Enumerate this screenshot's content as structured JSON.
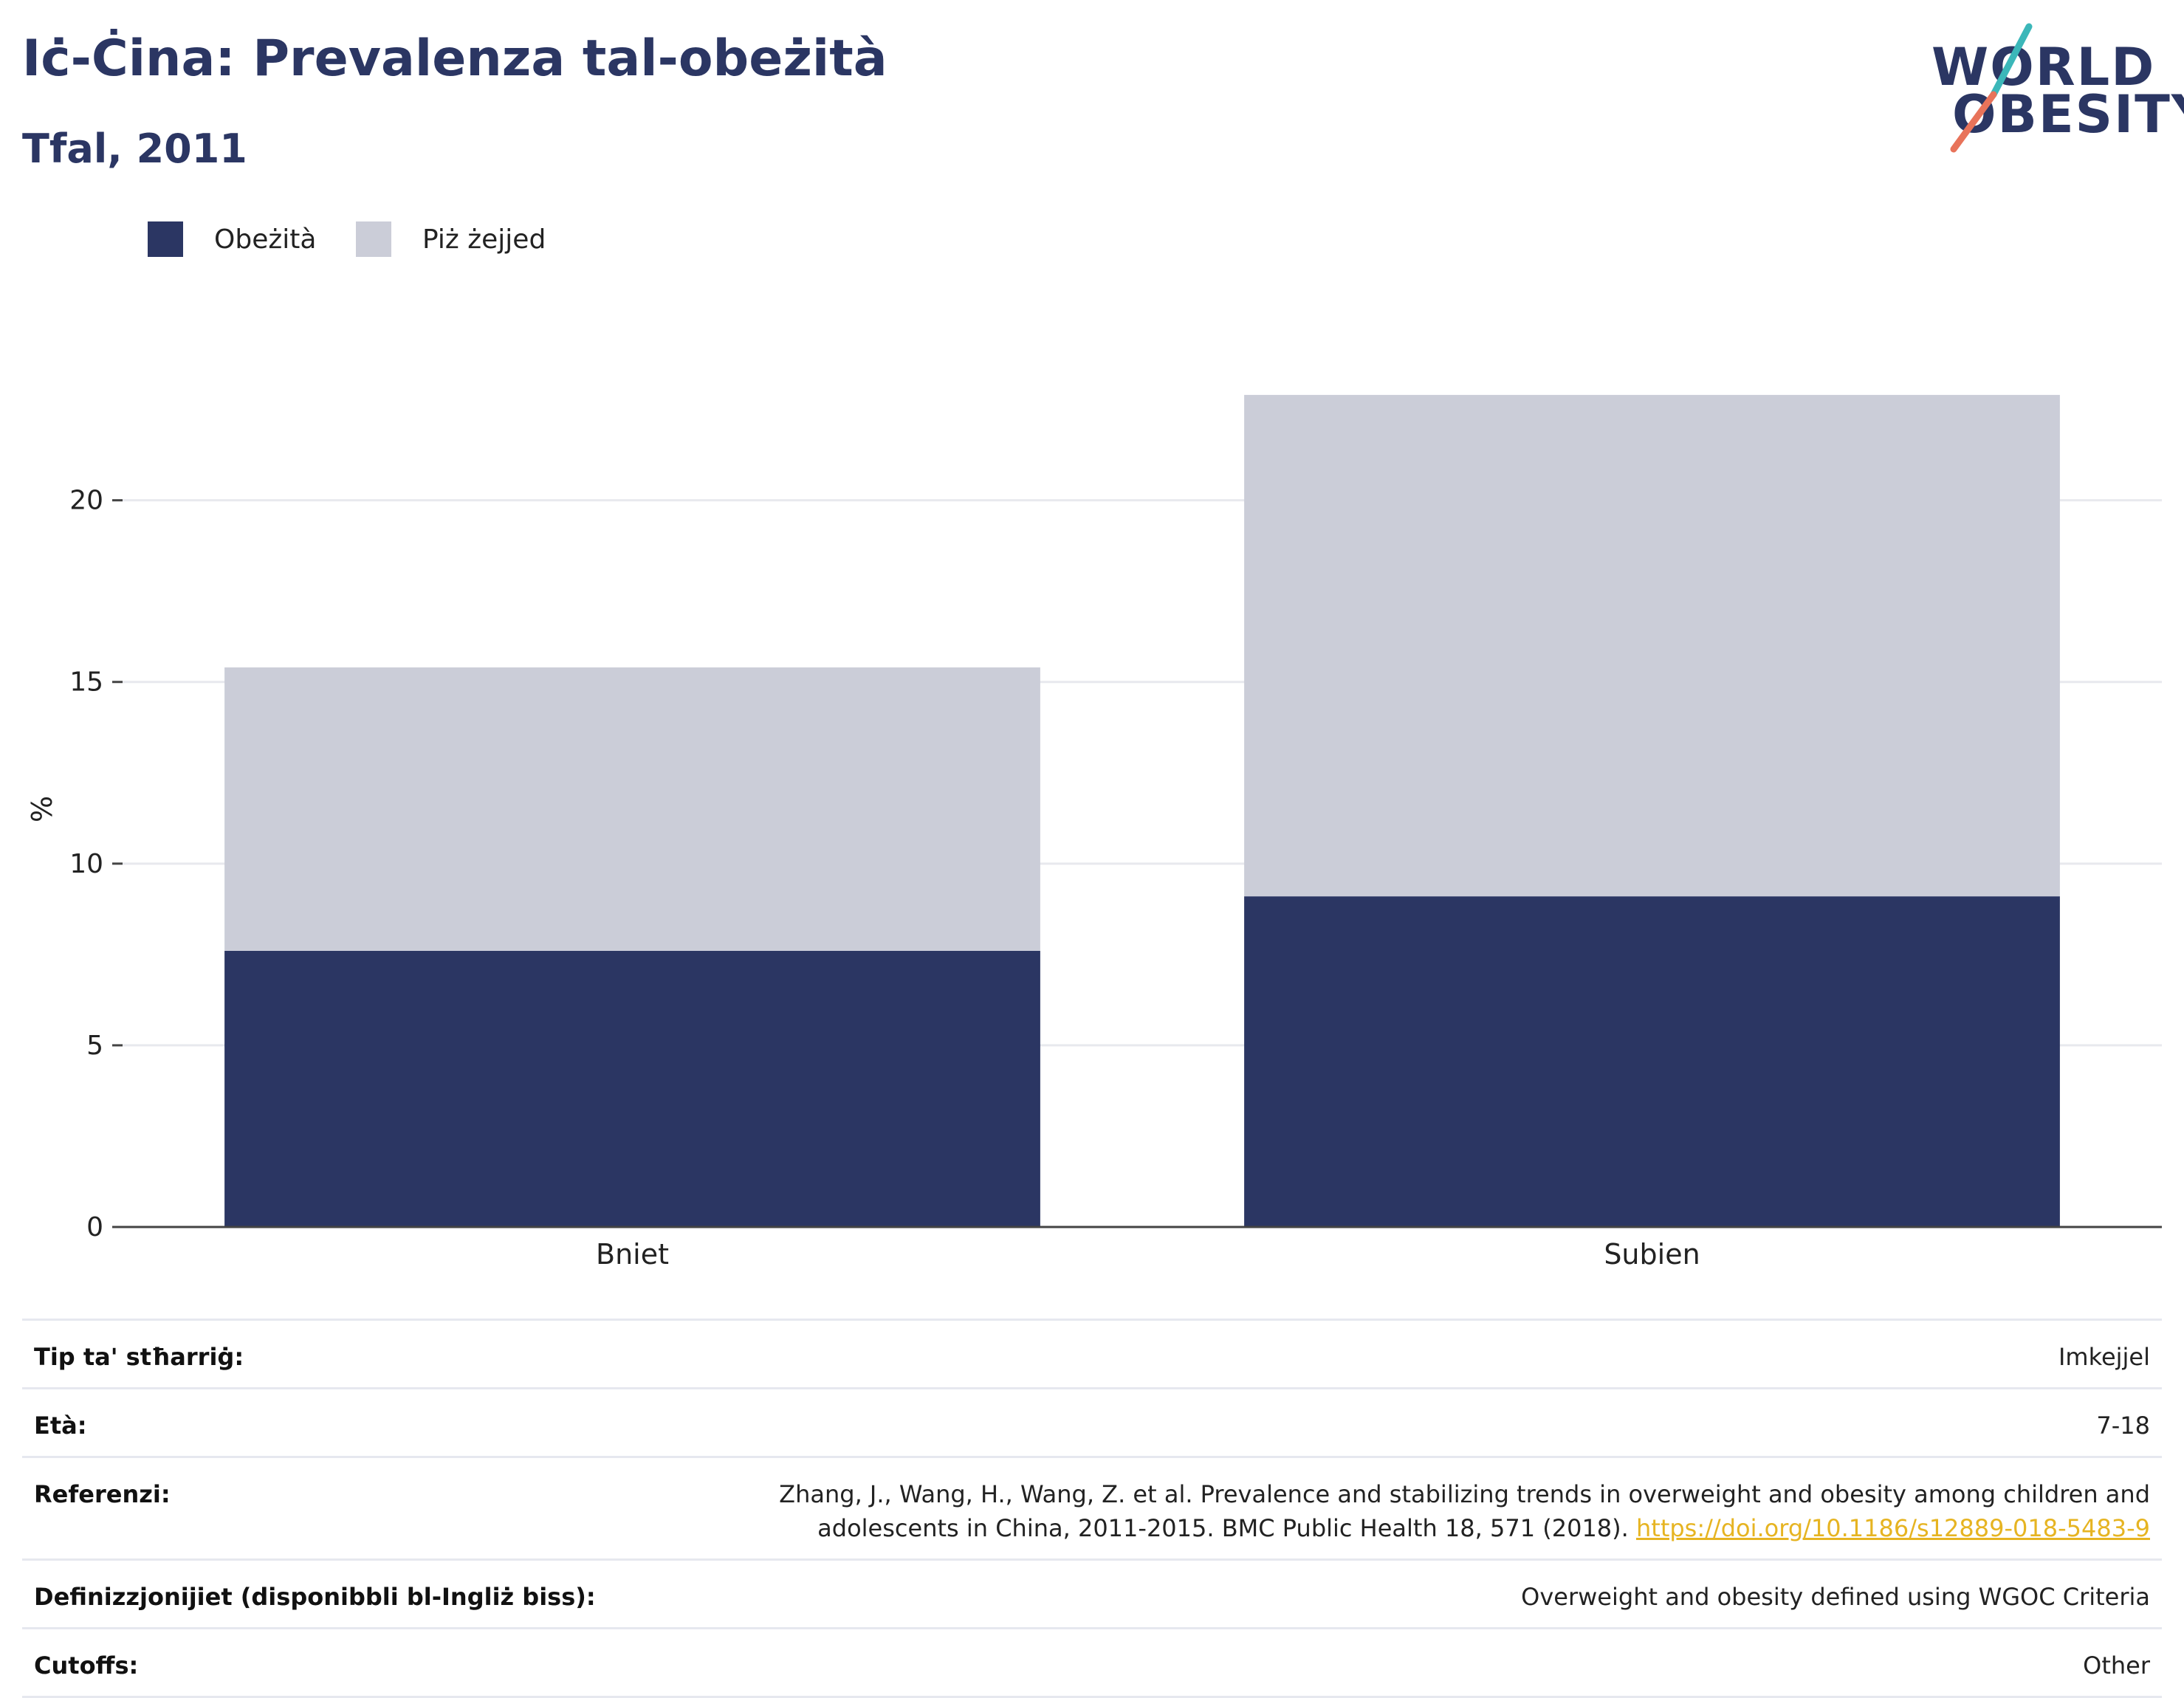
{
  "header": {
    "title": "Iċ-Ċina: Prevalenza tal-obeżità",
    "subtitle": "Tfal, 2011"
  },
  "logo": {
    "line1": "WORLD",
    "line2": "OBESITY",
    "colors": {
      "text": "#2b3663",
      "slash_top": "#3bb7b9",
      "slash_bottom": "#e8735a"
    }
  },
  "legend": {
    "items": [
      {
        "label": "Obeżità",
        "color": "#2b3663"
      },
      {
        "label": "Piż żejjed",
        "color": "#cbcdd8"
      }
    ]
  },
  "chart_data": {
    "type": "bar",
    "stacked": true,
    "categories": [
      "Bniet",
      "Subien"
    ],
    "series": [
      {
        "name": "Obeżità",
        "color": "#2b3663",
        "values": [
          7.6,
          9.1
        ]
      },
      {
        "name": "Piż żejjed",
        "color": "#cbcdd8",
        "values": [
          7.8,
          13.8
        ]
      }
    ],
    "ylabel": "%",
    "xlabel": "",
    "ylim": [
      0,
      23
    ],
    "yticks": [
      0,
      5,
      10,
      15,
      20
    ],
    "grid": true,
    "legend_position": "top-left"
  },
  "info": {
    "rows": [
      {
        "label": "Tip ta' stħarriġ:",
        "value": "Imkejjel"
      },
      {
        "label": "Età:",
        "value": "7-18"
      },
      {
        "label": "Referenzi:",
        "value": "Zhang, J., Wang, H., Wang, Z. et al. Prevalence and stabilizing trends in overweight and obesity among children and adolescents in China, 2011-2015. BMC Public Health 18, 571 (2018).",
        "link": "https://doi.org/10.1186/s12889-018-5483-9"
      },
      {
        "label": "Definizzjonijiet (disponibbli bl-Ingliż biss):",
        "value": "Overweight and obesity defined using WGOC Criteria"
      },
      {
        "label": "Cutoffs:",
        "value": "Other"
      }
    ]
  }
}
